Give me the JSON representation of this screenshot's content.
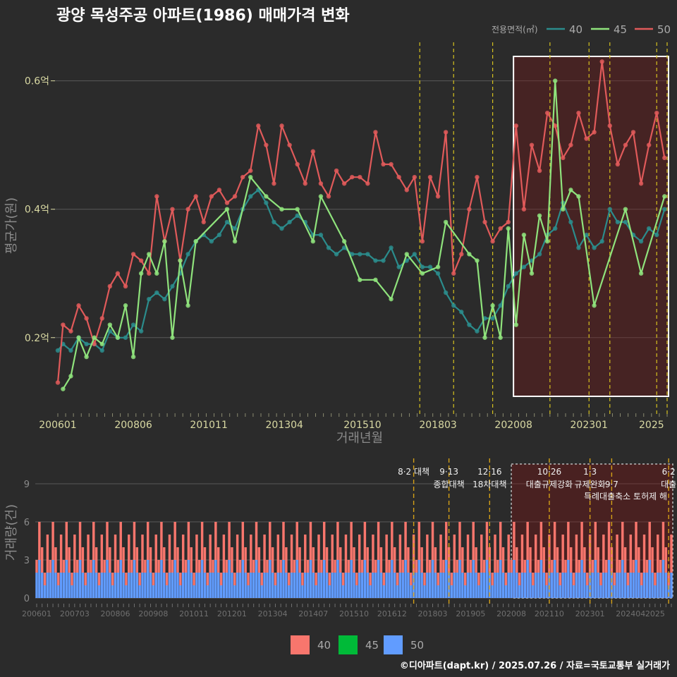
{
  "chart_data": [
    {
      "type": "line",
      "title": "광양 목성주공 아파트(1986) 매매가격 변화",
      "xlabel": "거래년월",
      "ylabel": "평균가(원)",
      "x_ticks": [
        "200601",
        "200806",
        "201011",
        "201304",
        "201510",
        "201803",
        "202008",
        "202301",
        "2025"
      ],
      "y_ticks": [
        {
          "value": 0.2,
          "label": "0.2억"
        },
        {
          "value": 0.4,
          "label": "0.4억"
        },
        {
          "value": 0.6,
          "label": "0.6억"
        }
      ],
      "ylim": [
        0.08,
        0.66
      ],
      "xlim": [
        "2006-01",
        "2025-07"
      ],
      "grid": true,
      "legend": {
        "title": "전용면적(㎡)",
        "position": "top-right",
        "entries": [
          "40",
          "45",
          "50"
        ]
      },
      "colors": {
        "40": "#2b8c8c",
        "45": "#8fe37c",
        "50": "#e05a5a"
      },
      "highlight_box": {
        "from": "2020-08",
        "to": "2025-07"
      },
      "event_lines": [
        "2017-08",
        "2018-09",
        "2019-12",
        "2021-10",
        "2023-01",
        "2023-09",
        "2025-03",
        "2025-07"
      ],
      "series": [
        {
          "name": "40",
          "points": [
            [
              "2006-01",
              0.18
            ],
            [
              "2006-03",
              0.19
            ],
            [
              "2006-06",
              0.18
            ],
            [
              "2006-09",
              0.2
            ],
            [
              "2006-12",
              0.19
            ],
            [
              "2007-03",
              0.19
            ],
            [
              "2007-06",
              0.18
            ],
            [
              "2007-09",
              0.21
            ],
            [
              "2007-12",
              0.2
            ],
            [
              "2008-03",
              0.2
            ],
            [
              "2008-06",
              0.22
            ],
            [
              "2008-09",
              0.21
            ],
            [
              "2008-12",
              0.26
            ],
            [
              "2009-03",
              0.27
            ],
            [
              "2009-06",
              0.26
            ],
            [
              "2009-09",
              0.28
            ],
            [
              "2009-12",
              0.3
            ],
            [
              "2010-03",
              0.33
            ],
            [
              "2010-06",
              0.35
            ],
            [
              "2010-09",
              0.36
            ],
            [
              "2010-12",
              0.35
            ],
            [
              "2011-03",
              0.36
            ],
            [
              "2011-06",
              0.38
            ],
            [
              "2011-09",
              0.37
            ],
            [
              "2011-12",
              0.4
            ],
            [
              "2012-03",
              0.42
            ],
            [
              "2012-06",
              0.43
            ],
            [
              "2012-09",
              0.41
            ],
            [
              "2012-12",
              0.38
            ],
            [
              "2013-03",
              0.37
            ],
            [
              "2013-06",
              0.38
            ],
            [
              "2013-09",
              0.39
            ],
            [
              "2013-12",
              0.38
            ],
            [
              "2014-03",
              0.36
            ],
            [
              "2014-06",
              0.36
            ],
            [
              "2014-09",
              0.34
            ],
            [
              "2014-12",
              0.33
            ],
            [
              "2015-03",
              0.34
            ],
            [
              "2015-06",
              0.33
            ],
            [
              "2015-09",
              0.33
            ],
            [
              "2015-12",
              0.33
            ],
            [
              "2016-03",
              0.32
            ],
            [
              "2016-06",
              0.32
            ],
            [
              "2016-09",
              0.34
            ],
            [
              "2016-12",
              0.31
            ],
            [
              "2017-03",
              0.32
            ],
            [
              "2017-06",
              0.33
            ],
            [
              "2017-09",
              0.31
            ],
            [
              "2017-12",
              0.31
            ],
            [
              "2018-03",
              0.3
            ],
            [
              "2018-06",
              0.27
            ],
            [
              "2018-09",
              0.25
            ],
            [
              "2018-12",
              0.24
            ],
            [
              "2019-03",
              0.22
            ],
            [
              "2019-06",
              0.21
            ],
            [
              "2019-09",
              0.23
            ],
            [
              "2019-12",
              0.23
            ],
            [
              "2020-03",
              0.25
            ],
            [
              "2020-06",
              0.28
            ],
            [
              "2020-09",
              0.3
            ],
            [
              "2020-12",
              0.31
            ],
            [
              "2021-03",
              0.32
            ],
            [
              "2021-06",
              0.33
            ],
            [
              "2021-09",
              0.36
            ],
            [
              "2021-12",
              0.37
            ],
            [
              "2022-03",
              0.41
            ],
            [
              "2022-06",
              0.38
            ],
            [
              "2022-09",
              0.34
            ],
            [
              "2022-12",
              0.36
            ],
            [
              "2023-03",
              0.34
            ],
            [
              "2023-06",
              0.35
            ],
            [
              "2023-09",
              0.4
            ],
            [
              "2023-12",
              0.38
            ],
            [
              "2024-03",
              0.38
            ],
            [
              "2024-06",
              0.36
            ],
            [
              "2024-09",
              0.35
            ],
            [
              "2024-12",
              0.37
            ],
            [
              "2025-03",
              0.36
            ],
            [
              "2025-06",
              0.4
            ]
          ]
        },
        {
          "name": "45",
          "points": [
            [
              "2006-03",
              0.12
            ],
            [
              "2006-06",
              0.14
            ],
            [
              "2006-09",
              0.2
            ],
            [
              "2006-12",
              0.17
            ],
            [
              "2007-03",
              0.2
            ],
            [
              "2007-06",
              0.19
            ],
            [
              "2007-09",
              0.22
            ],
            [
              "2007-12",
              0.2
            ],
            [
              "2008-03",
              0.25
            ],
            [
              "2008-06",
              0.17
            ],
            [
              "2008-09",
              0.3
            ],
            [
              "2008-12",
              0.33
            ],
            [
              "2009-03",
              0.3
            ],
            [
              "2009-06",
              0.35
            ],
            [
              "2009-09",
              0.2
            ],
            [
              "2009-12",
              0.32
            ],
            [
              "2010-03",
              0.25
            ],
            [
              "2010-06",
              0.35
            ],
            [
              "2011-06",
              0.4
            ],
            [
              "2011-09",
              0.35
            ],
            [
              "2012-03",
              0.45
            ],
            [
              "2012-09",
              0.42
            ],
            [
              "2013-03",
              0.4
            ],
            [
              "2013-09",
              0.4
            ],
            [
              "2014-03",
              0.35
            ],
            [
              "2014-06",
              0.42
            ],
            [
              "2015-03",
              0.35
            ],
            [
              "2015-09",
              0.29
            ],
            [
              "2016-03",
              0.29
            ],
            [
              "2016-09",
              0.26
            ],
            [
              "2017-03",
              0.33
            ],
            [
              "2017-09",
              0.3
            ],
            [
              "2018-03",
              0.31
            ],
            [
              "2018-06",
              0.38
            ],
            [
              "2019-03",
              0.33
            ],
            [
              "2019-06",
              0.32
            ],
            [
              "2019-09",
              0.2
            ],
            [
              "2019-12",
              0.25
            ],
            [
              "2020-03",
              0.2
            ],
            [
              "2020-06",
              0.37
            ],
            [
              "2020-09",
              0.22
            ],
            [
              "2020-12",
              0.36
            ],
            [
              "2021-03",
              0.3
            ],
            [
              "2021-06",
              0.39
            ],
            [
              "2021-09",
              0.35
            ],
            [
              "2021-12",
              0.6
            ],
            [
              "2022-03",
              0.4
            ],
            [
              "2022-06",
              0.43
            ],
            [
              "2022-09",
              0.42
            ],
            [
              "2023-03",
              0.25
            ],
            [
              "2024-03",
              0.4
            ],
            [
              "2024-09",
              0.3
            ],
            [
              "2025-06",
              0.42
            ]
          ]
        },
        {
          "name": "50",
          "points": [
            [
              "2006-01",
              0.13
            ],
            [
              "2006-03",
              0.22
            ],
            [
              "2006-06",
              0.21
            ],
            [
              "2006-09",
              0.25
            ],
            [
              "2006-12",
              0.23
            ],
            [
              "2007-03",
              0.19
            ],
            [
              "2007-06",
              0.23
            ],
            [
              "2007-09",
              0.28
            ],
            [
              "2007-12",
              0.3
            ],
            [
              "2008-03",
              0.28
            ],
            [
              "2008-06",
              0.33
            ],
            [
              "2008-09",
              0.32
            ],
            [
              "2008-12",
              0.3
            ],
            [
              "2009-03",
              0.42
            ],
            [
              "2009-06",
              0.35
            ],
            [
              "2009-09",
              0.4
            ],
            [
              "2009-12",
              0.32
            ],
            [
              "2010-03",
              0.4
            ],
            [
              "2010-06",
              0.42
            ],
            [
              "2010-09",
              0.38
            ],
            [
              "2010-12",
              0.42
            ],
            [
              "2011-03",
              0.43
            ],
            [
              "2011-06",
              0.41
            ],
            [
              "2011-09",
              0.42
            ],
            [
              "2011-12",
              0.45
            ],
            [
              "2012-03",
              0.46
            ],
            [
              "2012-06",
              0.53
            ],
            [
              "2012-09",
              0.5
            ],
            [
              "2012-12",
              0.44
            ],
            [
              "2013-03",
              0.53
            ],
            [
              "2013-06",
              0.5
            ],
            [
              "2013-09",
              0.47
            ],
            [
              "2013-12",
              0.44
            ],
            [
              "2014-03",
              0.49
            ],
            [
              "2014-06",
              0.44
            ],
            [
              "2014-09",
              0.42
            ],
            [
              "2014-12",
              0.46
            ],
            [
              "2015-03",
              0.44
            ],
            [
              "2015-06",
              0.45
            ],
            [
              "2015-09",
              0.45
            ],
            [
              "2015-12",
              0.44
            ],
            [
              "2016-03",
              0.52
            ],
            [
              "2016-06",
              0.47
            ],
            [
              "2016-09",
              0.47
            ],
            [
              "2016-12",
              0.45
            ],
            [
              "2017-03",
              0.43
            ],
            [
              "2017-06",
              0.45
            ],
            [
              "2017-09",
              0.35
            ],
            [
              "2017-12",
              0.45
            ],
            [
              "2018-03",
              0.42
            ],
            [
              "2018-06",
              0.52
            ],
            [
              "2018-09",
              0.3
            ],
            [
              "2018-12",
              0.33
            ],
            [
              "2019-03",
              0.4
            ],
            [
              "2019-06",
              0.45
            ],
            [
              "2019-09",
              0.38
            ],
            [
              "2019-12",
              0.35
            ],
            [
              "2020-03",
              0.37
            ],
            [
              "2020-06",
              0.38
            ],
            [
              "2020-09",
              0.53
            ],
            [
              "2020-12",
              0.4
            ],
            [
              "2021-03",
              0.5
            ],
            [
              "2021-06",
              0.46
            ],
            [
              "2021-09",
              0.55
            ],
            [
              "2021-12",
              0.53
            ],
            [
              "2022-03",
              0.48
            ],
            [
              "2022-06",
              0.5
            ],
            [
              "2022-09",
              0.55
            ],
            [
              "2022-12",
              0.51
            ],
            [
              "2023-03",
              0.52
            ],
            [
              "2023-06",
              0.63
            ],
            [
              "2023-09",
              0.53
            ],
            [
              "2023-12",
              0.47
            ],
            [
              "2024-03",
              0.5
            ],
            [
              "2024-06",
              0.52
            ],
            [
              "2024-09",
              0.44
            ],
            [
              "2024-12",
              0.5
            ],
            [
              "2025-03",
              0.55
            ],
            [
              "2025-06",
              0.48
            ]
          ]
        }
      ]
    },
    {
      "type": "bar",
      "ylabel": "거래량(건)",
      "stacked": true,
      "x_ticks": [
        "200601",
        "200703",
        "200806",
        "200908",
        "201011",
        "201201",
        "201304",
        "201407",
        "201510",
        "201612",
        "201803",
        "201905",
        "202008",
        "202110",
        "202301",
        "202404",
        "2025"
      ],
      "y_ticks": [
        0,
        3,
        6,
        9
      ],
      "ylim": [
        0,
        11
      ],
      "legend": {
        "position": "bottom",
        "entries": [
          "40",
          "45",
          "50"
        ]
      },
      "colors": {
        "40": "#f8766d",
        "45": "#00ba38",
        "50": "#619cff"
      },
      "highlight_box": {
        "from": "2020-08",
        "to": "2025-07"
      },
      "monthly_totals_pattern": [
        3,
        2,
        4,
        1,
        5,
        3,
        2,
        6,
        3,
        2,
        4,
        3
      ],
      "events": [
        {
          "date": "2017-08",
          "line1": "8·2 대책",
          "line2": ""
        },
        {
          "date": "2018-09",
          "line1": "9·13",
          "line2": "종합대책"
        },
        {
          "date": "2019-12",
          "line1": "12·16",
          "line2": "18차대책"
        },
        {
          "date": "2021-10",
          "line1": "10·26",
          "line2": "대출규제강화"
        },
        {
          "date": "2023-01",
          "line1": "1·3",
          "line2": "규제완화"
        },
        {
          "date": "2023-09",
          "line1": "",
          "line2": "9·7"
        },
        {
          "date": "2025-06",
          "line1": "6·2",
          "line2": "대출"
        }
      ],
      "event_extra": "특례대출축소 토허제 해"
    }
  ],
  "credit": "©디아파트(dapt.kr) / 2025.07.26 / 자료=국토교통부 실거래가"
}
